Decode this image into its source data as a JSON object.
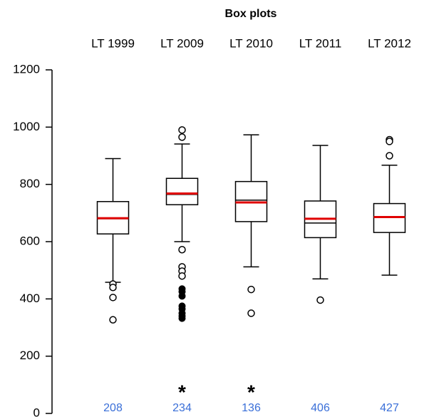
{
  "chart_data": {
    "type": "box",
    "title": "Box plots",
    "categories": [
      "LT 1999",
      "LT 2009",
      "LT 2010",
      "LT 2011",
      "LT 2012"
    ],
    "ylim": [
      0,
      1200
    ],
    "yticks": [
      0,
      200,
      400,
      600,
      800,
      1000,
      1200
    ],
    "box_color": "#000000",
    "mean_color": "#e00000",
    "whisker_low": [
      458,
      600,
      512,
      470,
      483
    ],
    "q1": [
      627,
      729,
      670,
      614,
      632
    ],
    "median": [
      680,
      765,
      745,
      665,
      686
    ],
    "mean": [
      682,
      768,
      737,
      680,
      686
    ],
    "q3": [
      740,
      821,
      810,
      742,
      733
    ],
    "whisker_high": [
      890,
      941,
      973,
      936,
      867
    ],
    "outliers": [
      [
        452,
        440,
        405,
        327
      ],
      [
        990,
        965,
        572,
        512,
        497,
        480
      ],
      [
        433,
        350
      ],
      [
        396
      ],
      [
        956,
        950,
        900
      ]
    ],
    "far_outliers": [
      [],
      [
        435,
        425,
        410,
        375,
        365,
        350,
        340,
        332
      ],
      [],
      [],
      []
    ],
    "n": [
      208,
      234,
      136,
      406,
      427
    ],
    "significance": [
      null,
      "*",
      "*",
      null,
      null
    ]
  }
}
